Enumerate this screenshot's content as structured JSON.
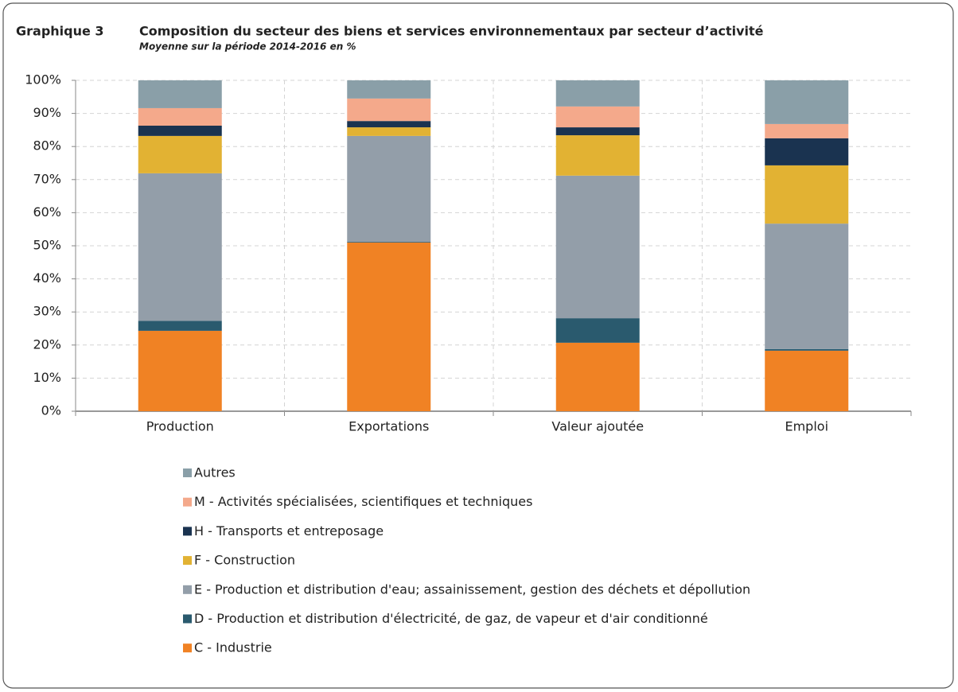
{
  "chart_data": {
    "type": "stacked_bar",
    "label": "Graphique 3",
    "title": "Composition du secteur des biens et services environnementaux par secteur d’activité",
    "subtitle": "Moyenne sur la période 2014-2016 en %",
    "categories": [
      "Production",
      "Exportations",
      "Valeur ajoutée",
      "Emploi"
    ],
    "series": [
      {
        "name": "C - Industrie",
        "color": "#f08224",
        "values": [
          24.3,
          51.0,
          20.7,
          18.3
        ]
      },
      {
        "name": "D - Production et distribution d'électricité, de gaz, de vapeur et d'air conditionné",
        "color": "#2a5a6e",
        "values": [
          3.0,
          0.2,
          7.4,
          0.5
        ]
      },
      {
        "name": "E - Production et distribution d'eau; assainissement, gestion des déchets et dépollution",
        "color": "#939ea9",
        "values": [
          44.6,
          32.0,
          43.1,
          37.9
        ]
      },
      {
        "name": "F - Construction",
        "color": "#e2b233",
        "values": [
          11.3,
          2.6,
          12.2,
          17.6
        ]
      },
      {
        "name": "H - Transports et entreposage",
        "color": "#1a3350",
        "values": [
          3.1,
          1.9,
          2.4,
          8.2
        ]
      },
      {
        "name": "M - Activités spécialisées, scientifiques et techniques",
        "color": "#f4a98b",
        "values": [
          5.3,
          6.8,
          6.3,
          4.3
        ]
      },
      {
        "name": "Autres",
        "color": "#8a9fa8",
        "values": [
          8.4,
          5.5,
          7.9,
          13.2
        ]
      }
    ],
    "ylim": [
      0,
      100
    ],
    "yticks": [
      {
        "value": 0,
        "label": "0%"
      },
      {
        "value": 10,
        "label": "10%"
      },
      {
        "value": 20,
        "label": "20%"
      },
      {
        "value": 30,
        "label": "30%"
      },
      {
        "value": 40,
        "label": "40%"
      },
      {
        "value": 50,
        "label": "50%"
      },
      {
        "value": 60,
        "label": "60%"
      },
      {
        "value": 70,
        "label": "70%"
      },
      {
        "value": 80,
        "label": "80%"
      },
      {
        "value": 90,
        "label": "90%"
      },
      {
        "value": 100,
        "label": "100%"
      }
    ],
    "grid": true,
    "legend": "bottom"
  }
}
